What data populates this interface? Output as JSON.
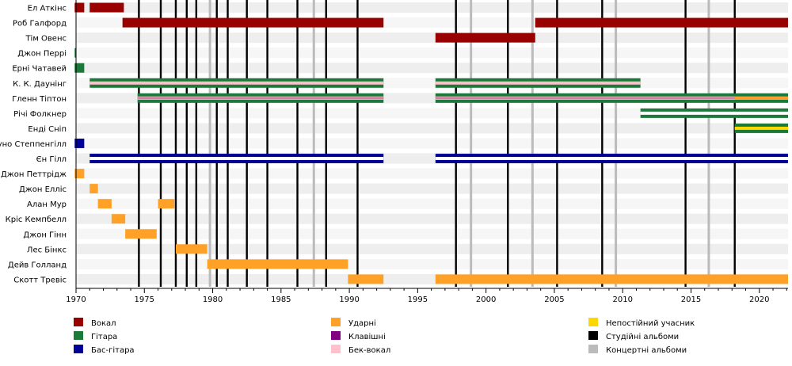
{
  "chart_data": {
    "type": "timeline",
    "x_range": [
      1970,
      2022.1
    ],
    "x_ticks": [
      "1970",
      "1975",
      "1980",
      "1985",
      "1990",
      "1995",
      "2000",
      "2005",
      "2010",
      "2015",
      "2020"
    ],
    "members": [
      "Ел Аткінс",
      "Роб Галфорд",
      "Тім Овенс",
      "Джон Перрі",
      "Ерні Чатавей",
      "К. К. Даунінг",
      "Гленн Тіптон",
      "Річі Фолкнер",
      "Енді Сніп",
      "Бруно Степпенгілл",
      "Єн Гілл",
      "Джон Петтрідж",
      "Джон Елліс",
      "Алан Мур",
      "Кріс Кемпбелл",
      "Джон Гінн",
      "Лес Бінкс",
      "Дейв Голланд",
      "Скотт Тревіс"
    ],
    "studio_albums": [
      1974.6,
      1976.2,
      1977.3,
      1978.1,
      1978.8,
      1980.3,
      1981.1,
      1982.5,
      1984.0,
      1986.2,
      1988.3,
      1990.6,
      1997.8,
      2001.6,
      2005.2,
      2008.5,
      2014.6,
      2018.2
    ],
    "live_albums": [
      1979.8,
      1987.4,
      1998.9,
      2003.4,
      2009.5,
      2016.3
    ],
    "roles": [
      {
        "key": "vocal",
        "label": "Вокал",
        "color": "#990000"
      },
      {
        "key": "guitar",
        "label": "Гітара",
        "color": "#1b7a3a"
      },
      {
        "key": "bass",
        "label": "Бас-гітара",
        "color": "#000099"
      },
      {
        "key": "drums",
        "label": "Ударні",
        "color": "#ffa126"
      },
      {
        "key": "keys",
        "label": "Клавішні",
        "color": "#800080"
      },
      {
        "key": "backing",
        "label": "Бек-вокал",
        "color": "#ffc0cb"
      },
      {
        "key": "guest",
        "label": "Непостійний учасник",
        "color": "#ffd700"
      },
      {
        "key": "studio",
        "label": "Студійні альбоми",
        "color": "#000000"
      },
      {
        "key": "live",
        "label": "Концертні альбоми",
        "color": "#bbbbbb"
      }
    ],
    "bars": [
      {
        "row": 0,
        "role": "vocal",
        "start": 1969.9,
        "end": 1970.6
      },
      {
        "row": 0,
        "role": "vocal",
        "start": 1971.0,
        "end": 1973.5
      },
      {
        "row": 1,
        "role": "vocal",
        "start": 1973.4,
        "end": 1992.5
      },
      {
        "row": 1,
        "role": "vocal",
        "start": 2003.6,
        "end": 2022.1
      },
      {
        "row": 2,
        "role": "vocal",
        "start": 1996.3,
        "end": 2003.6
      },
      {
        "row": 3,
        "role": "guitar",
        "start": 1969.9,
        "end": 1970.0
      },
      {
        "row": 4,
        "role": "guitar",
        "start": 1969.9,
        "end": 1970.6
      },
      {
        "row": 5,
        "role": "guitar",
        "start": 1971.0,
        "end": 1992.5,
        "stripe": "backing"
      },
      {
        "row": 5,
        "role": "guitar",
        "start": 1996.3,
        "end": 2011.3,
        "stripe": "backing"
      },
      {
        "row": 6,
        "role": "guitar",
        "start": 1974.5,
        "end": 1992.5,
        "stripe": "backing",
        "inner": "keys"
      },
      {
        "row": 6,
        "role": "guitar",
        "start": 1996.3,
        "end": 2022.1,
        "stripe": "backing",
        "inner": "keys"
      },
      {
        "row": 6,
        "role": "drums",
        "start": 2018.2,
        "end": 2022.1,
        "overlay": true
      },
      {
        "row": 7,
        "role": "guitar",
        "start": 2011.3,
        "end": 2022.1,
        "stripe": "white"
      },
      {
        "row": 8,
        "role": "guitar",
        "start": 2018.2,
        "end": 2022.1,
        "stripe": "guest"
      },
      {
        "row": 9,
        "role": "bass",
        "start": 1969.9,
        "end": 1970.6
      },
      {
        "row": 10,
        "role": "bass",
        "start": 1971.0,
        "end": 1992.5,
        "stripe": "white"
      },
      {
        "row": 10,
        "role": "bass",
        "start": 1996.3,
        "end": 2022.1,
        "stripe": "white"
      },
      {
        "row": 11,
        "role": "drums",
        "start": 1969.9,
        "end": 1970.6
      },
      {
        "row": 12,
        "role": "drums",
        "start": 1971.0,
        "end": 1971.6
      },
      {
        "row": 13,
        "role": "drums",
        "start": 1971.6,
        "end": 1972.6
      },
      {
        "row": 13,
        "role": "drums",
        "start": 1976.0,
        "end": 1977.2
      },
      {
        "row": 14,
        "role": "drums",
        "start": 1972.6,
        "end": 1973.6
      },
      {
        "row": 15,
        "role": "drums",
        "start": 1973.6,
        "end": 1975.9
      },
      {
        "row": 16,
        "role": "drums",
        "start": 1977.3,
        "end": 1979.6
      },
      {
        "row": 17,
        "role": "drums",
        "start": 1979.6,
        "end": 1989.9
      },
      {
        "row": 18,
        "role": "drums",
        "start": 1989.9,
        "end": 1992.5
      },
      {
        "row": 18,
        "role": "drums",
        "start": 1996.3,
        "end": 2022.1
      }
    ]
  }
}
